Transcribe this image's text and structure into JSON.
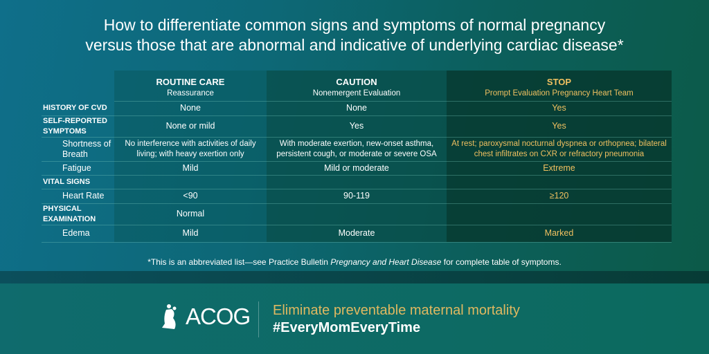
{
  "title": [
    "How to differentiate common signs and symptoms of normal pregnancy",
    "versus those that are abnormal and indicative of underlying cardiac disease*"
  ],
  "columns": [
    {
      "label": "ROUTINE CARE",
      "sub": "Reassurance"
    },
    {
      "label": "CAUTION",
      "sub": "Nonemergent Evaluation"
    },
    {
      "label": "STOP",
      "sub": "Prompt Evaluation Pregnancy Heart Team"
    }
  ],
  "rows": [
    {
      "label": "HISTORY OF CVD",
      "type": "section",
      "values": [
        "None",
        "None",
        "Yes"
      ]
    },
    {
      "label": "SELF-REPORTED SYMPTOMS",
      "type": "section",
      "values": [
        "None or mild",
        "Yes",
        "Yes"
      ]
    },
    {
      "label": "Shortness of Breath",
      "type": "sub",
      "values": [
        "No interference with activities of daily living; with heavy exertion only",
        "With moderate exertion, new-onset asthma, persistent cough, or moderate or severe OSA",
        "At rest; paroxysmal nocturnal dyspnea or orthopnea; bilateral chest infiltrates on CXR or refractory pneumonia"
      ]
    },
    {
      "label": "Fatigue",
      "type": "sub",
      "values": [
        "Mild",
        "Mild or moderate",
        "Extreme"
      ]
    },
    {
      "label": "VITAL SIGNS",
      "type": "section",
      "values": [
        "",
        "",
        ""
      ]
    },
    {
      "label": "Heart Rate",
      "type": "sub",
      "values": [
        "<90",
        "90-119",
        "≥120"
      ]
    },
    {
      "label": "PHYSICAL EXAMINATION",
      "type": "section",
      "values": [
        "Normal",
        "",
        ""
      ]
    },
    {
      "label": "Edema",
      "type": "sub",
      "values": [
        "Mild",
        "Moderate",
        "Marked"
      ]
    }
  ],
  "note": {
    "pre": "*This is an abbreviated list—see Practice Bulletin ",
    "italic": "Pregnancy and Heart Disease",
    "post": " for complete table of symptoms."
  },
  "footer": {
    "logo": "ACOG",
    "tagline": "Eliminate preventable maternal mortality",
    "hashtag": "#EveryMomEveryTime"
  },
  "colors": {
    "stop": "#f0c060",
    "tagline": "#e0b860"
  }
}
